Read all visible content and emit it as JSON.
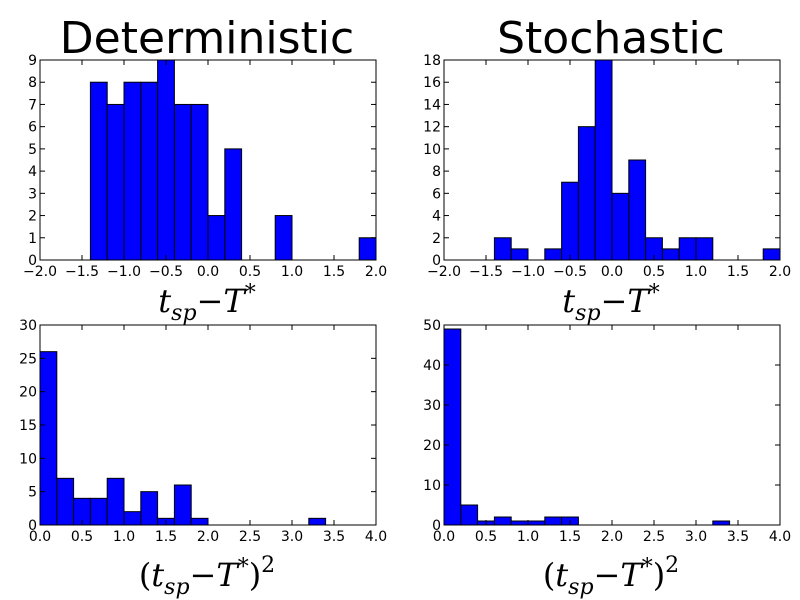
{
  "chart_data": [
    {
      "type": "bar",
      "title": "Deterministic",
      "xlabel": "t_sp−T*",
      "xlim": [
        -2.0,
        2.0
      ],
      "ylim": [
        0,
        9
      ],
      "xticks": [
        "−2.0",
        "−1.5",
        "−1.0",
        "−0.5",
        "0.0",
        "0.5",
        "1.0",
        "1.5",
        "2.0"
      ],
      "yticks": [
        "0",
        "1",
        "2",
        "3",
        "4",
        "5",
        "6",
        "7",
        "8",
        "9"
      ],
      "bin_edges": [
        -1.4,
        -1.2,
        -1.0,
        -0.8,
        -0.6,
        -0.4,
        -0.2,
        0.0,
        0.2,
        0.4,
        0.6,
        0.8,
        1.0,
        1.2,
        1.4,
        1.6,
        1.8,
        2.0
      ],
      "values": [
        8,
        7,
        8,
        8,
        9,
        7,
        7,
        2,
        5,
        0,
        0,
        2,
        0,
        0,
        0,
        0,
        1
      ]
    },
    {
      "type": "bar",
      "title": "Stochastic",
      "xlabel": "t_sp−T*",
      "xlim": [
        -2.0,
        2.0
      ],
      "ylim": [
        0,
        18
      ],
      "xticks": [
        "−2.0",
        "−1.5",
        "−1.0",
        "−0.5",
        "0.0",
        "0.5",
        "1.0",
        "1.5",
        "2.0"
      ],
      "yticks": [
        "0",
        "2",
        "4",
        "6",
        "8",
        "10",
        "12",
        "14",
        "16",
        "18"
      ],
      "bin_edges": [
        -1.4,
        -1.2,
        -1.0,
        -0.8,
        -0.6,
        -0.4,
        -0.2,
        0.0,
        0.2,
        0.4,
        0.6,
        0.8,
        1.0,
        1.2,
        1.4,
        1.6,
        1.8,
        2.0
      ],
      "values": [
        2,
        1,
        0,
        1,
        7,
        12,
        18,
        6,
        9,
        2,
        1,
        2,
        2,
        0,
        0,
        0,
        1
      ]
    },
    {
      "type": "bar",
      "title": "",
      "xlabel": "(t_sp−T*)^2",
      "xlim": [
        0.0,
        4.0
      ],
      "ylim": [
        0,
        30
      ],
      "xticks": [
        "0.0",
        "0.5",
        "1.0",
        "1.5",
        "2.0",
        "2.5",
        "3.0",
        "3.5",
        "4.0"
      ],
      "yticks": [
        "0",
        "5",
        "10",
        "15",
        "20",
        "25",
        "30"
      ],
      "bin_edges": [
        0.0,
        0.2,
        0.4,
        0.6,
        0.8,
        1.0,
        1.2,
        1.4,
        1.6,
        1.8,
        2.0,
        2.2,
        2.4,
        2.6,
        2.8,
        3.0,
        3.2,
        3.4
      ],
      "values": [
        26,
        7,
        4,
        4,
        7,
        2,
        5,
        1,
        6,
        1,
        0,
        0,
        0,
        0,
        0,
        0,
        1
      ]
    },
    {
      "type": "bar",
      "title": "",
      "xlabel": "(t_sp−T*)^2",
      "xlim": [
        0.0,
        4.0
      ],
      "ylim": [
        0,
        50
      ],
      "xticks": [
        "0.0",
        "0.5",
        "1.0",
        "1.5",
        "2.0",
        "2.5",
        "3.0",
        "3.5",
        "4.0"
      ],
      "yticks": [
        "0",
        "10",
        "20",
        "30",
        "40",
        "50"
      ],
      "bin_edges": [
        0.0,
        0.2,
        0.4,
        0.6,
        0.8,
        1.0,
        1.2,
        1.4,
        1.6,
        1.8,
        2.0,
        2.2,
        2.4,
        2.6,
        2.8,
        3.0,
        3.2,
        3.4
      ],
      "values": [
        49,
        5,
        1,
        2,
        1,
        1,
        2,
        2,
        0,
        0,
        0,
        0,
        0,
        0,
        0,
        0,
        1
      ]
    }
  ],
  "colors": {
    "bar_fill": "#0000ff",
    "bar_edge": "#000000"
  }
}
